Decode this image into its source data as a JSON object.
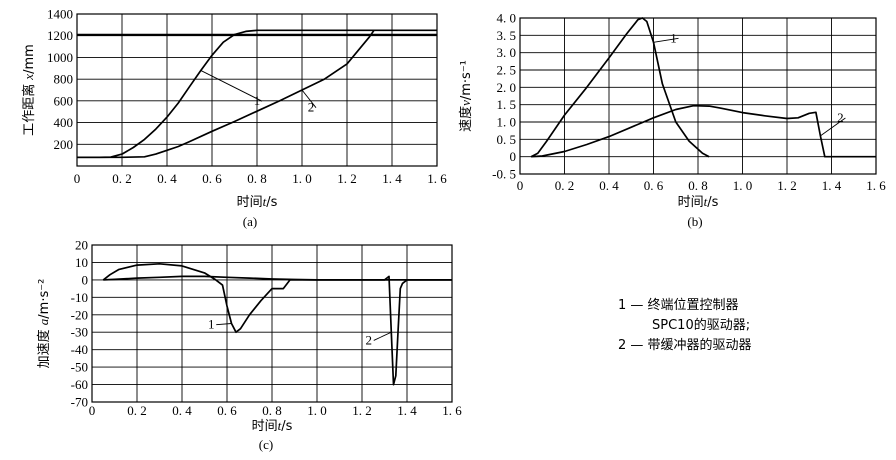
{
  "chart_data": [
    {
      "type": "line",
      "ylabel_pre": "工作距离 ",
      "ylabel_var": "x",
      "ylabel_post": "/mm",
      "xlabel_pre": "时间",
      "xlabel_var": "t",
      "xlabel_post": "/s",
      "xlim": [
        0,
        1.6
      ],
      "ylim": [
        0,
        1400
      ],
      "xticks": [
        0,
        0.2,
        0.4,
        0.6,
        0.8,
        1.0,
        1.2,
        1.4,
        1.6
      ],
      "xtick_labels": [
        "0",
        "0. 2",
        "0. 4",
        "0. 6",
        "0. 8",
        "1. 0",
        "1. 2",
        "1. 4",
        "1. 6"
      ],
      "yticks": [
        200,
        400,
        600,
        800,
        1000,
        1200,
        1400
      ],
      "ytick_labels": [
        "200",
        "400",
        "600",
        "800",
        "1000",
        "1200",
        "1400"
      ],
      "grid": true,
      "panel_label": "(a)",
      "series": [
        {
          "name": "1",
          "x": [
            0.0,
            0.1,
            0.15,
            0.2,
            0.25,
            0.3,
            0.35,
            0.4,
            0.45,
            0.5,
            0.55,
            0.6,
            0.65,
            0.7,
            0.75,
            0.8,
            1.0,
            1.2,
            1.4,
            1.6
          ],
          "y": [
            80,
            80,
            82,
            110,
            170,
            245,
            340,
            450,
            580,
            730,
            880,
            1020,
            1140,
            1210,
            1240,
            1250,
            1250,
            1250,
            1250,
            1250
          ]
        },
        {
          "name": "2",
          "x": [
            0.0,
            0.2,
            0.3,
            0.35,
            0.4,
            0.45,
            0.5,
            0.6,
            0.7,
            0.8,
            0.9,
            1.0,
            1.1,
            1.2,
            1.3,
            1.32
          ],
          "y": [
            80,
            80,
            85,
            110,
            145,
            180,
            225,
            320,
            410,
            505,
            600,
            700,
            800,
            940,
            1190,
            1250
          ]
        },
        {
          "name": "",
          "x": [
            0.0,
            1.6
          ],
          "y": [
            1210,
            1210
          ]
        }
      ],
      "annotations": [
        {
          "text": "1",
          "x": 0.8,
          "y": 560
        },
        {
          "text": "2",
          "x": 1.04,
          "y": 500
        }
      ]
    },
    {
      "type": "line",
      "ylabel_pre": "速度",
      "ylabel_var": "v",
      "ylabel_post": "/m·s⁻¹",
      "xlabel_pre": "时间",
      "xlabel_var": "t",
      "xlabel_post": "/s",
      "xlim": [
        0,
        1.6
      ],
      "ylim": [
        -0.5,
        4.0
      ],
      "xticks": [
        0,
        0.2,
        0.4,
        0.6,
        0.8,
        1.0,
        1.2,
        1.4,
        1.6
      ],
      "xtick_labels": [
        "0",
        "0. 2",
        "0. 4",
        "0. 6",
        "0. 8",
        "1. 0",
        "1. 2",
        "1. 4",
        "1. 6"
      ],
      "yticks": [
        -0.5,
        0,
        0.5,
        1.0,
        1.5,
        2.0,
        2.5,
        3.0,
        3.5,
        4.0
      ],
      "ytick_labels": [
        "-0. 5",
        "0",
        "0. 5",
        "1. 0",
        "1. 5",
        "2. 0",
        "2. 5",
        "3. 0",
        "3. 5",
        "4. 0"
      ],
      "grid": true,
      "panel_label": "(b)",
      "series": [
        {
          "name": "1",
          "x": [
            0.05,
            0.08,
            0.12,
            0.2,
            0.3,
            0.4,
            0.48,
            0.53,
            0.55,
            0.57,
            0.6,
            0.64,
            0.7,
            0.76,
            0.82,
            0.85
          ],
          "y": [
            0.0,
            0.1,
            0.45,
            1.2,
            2.0,
            2.85,
            3.55,
            3.95,
            4.0,
            3.9,
            3.3,
            2.1,
            1.0,
            0.45,
            0.1,
            0.0
          ]
        },
        {
          "name": "2",
          "x": [
            0.05,
            0.1,
            0.2,
            0.3,
            0.4,
            0.5,
            0.6,
            0.7,
            0.78,
            0.85,
            0.9,
            1.0,
            1.1,
            1.2,
            1.25,
            1.3,
            1.33,
            1.35,
            1.37,
            1.6
          ],
          "y": [
            0.0,
            0.02,
            0.15,
            0.35,
            0.58,
            0.85,
            1.12,
            1.36,
            1.47,
            1.46,
            1.4,
            1.27,
            1.18,
            1.1,
            1.12,
            1.25,
            1.28,
            0.6,
            0.0,
            0.0
          ]
        }
      ],
      "annotations": [
        {
          "text": "1",
          "x": 0.69,
          "y": 3.3
        },
        {
          "text": "2",
          "x": 1.44,
          "y": 1.0
        }
      ]
    },
    {
      "type": "line",
      "ylabel_pre": "加速度 ",
      "ylabel_var": "a",
      "ylabel_post": "/m·s⁻²",
      "xlabel_pre": "时间",
      "xlabel_var": "t",
      "xlabel_post": "/s",
      "xlim": [
        0,
        1.6
      ],
      "ylim": [
        -70,
        20
      ],
      "xticks": [
        0,
        0.2,
        0.4,
        0.6,
        0.8,
        1.0,
        1.2,
        1.4,
        1.6
      ],
      "xtick_labels": [
        "0",
        "0. 2",
        "0. 4",
        "0. 6",
        "0. 8",
        "1. 0",
        "1. 2",
        "1. 4",
        "1. 6"
      ],
      "yticks": [
        -70,
        -60,
        -50,
        -40,
        -30,
        -20,
        -10,
        0,
        10,
        20
      ],
      "ytick_labels": [
        "-70",
        "-60",
        "-50",
        "-40",
        "-30",
        "-20",
        "-10",
        "0",
        "10",
        "20"
      ],
      "grid": true,
      "panel_label": "(c)",
      "series": [
        {
          "name": "1",
          "x": [
            0.05,
            0.08,
            0.12,
            0.2,
            0.3,
            0.4,
            0.5,
            0.55,
            0.58,
            0.6,
            0.62,
            0.64,
            0.66,
            0.7,
            0.75,
            0.8,
            0.85,
            0.88,
            1.6
          ],
          "y": [
            0,
            3,
            6,
            8.5,
            9.2,
            8,
            4,
            0,
            -3,
            -15,
            -25,
            -30,
            -28,
            -20,
            -12,
            -5,
            -5,
            0,
            0
          ]
        },
        {
          "name": "2",
          "x": [
            0.05,
            0.1,
            0.2,
            0.3,
            0.4,
            0.5,
            0.6,
            0.7,
            0.8,
            0.9,
            1.0,
            1.1,
            1.2,
            1.3,
            1.32,
            1.33,
            1.34,
            1.35,
            1.36,
            1.37,
            1.38,
            1.4,
            1.6
          ],
          "y": [
            0,
            0.3,
            1.0,
            1.5,
            2.0,
            2.0,
            1.5,
            1.0,
            0.5,
            0.2,
            0,
            0,
            0,
            0,
            2,
            -30,
            -60,
            -55,
            -30,
            -5,
            -2,
            0,
            0
          ]
        }
      ],
      "annotations": [
        {
          "text": "1",
          "x": 0.53,
          "y": -28
        },
        {
          "text": "2",
          "x": 1.23,
          "y": -37
        }
      ]
    }
  ],
  "legend": {
    "item1_line1": "1 — 终端位置控制器",
    "item1_line2": "SPC10的驱动器;",
    "item2": "2 — 带缓冲器的驱动器"
  }
}
